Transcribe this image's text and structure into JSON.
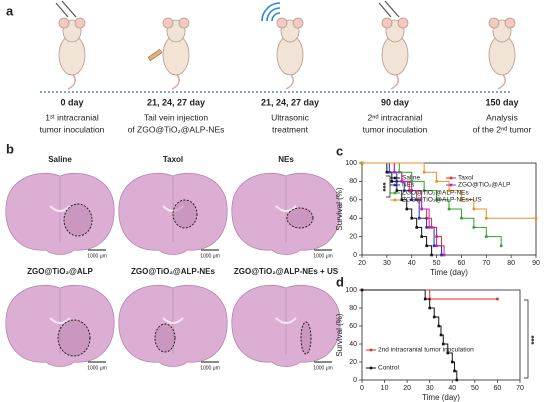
{
  "panel_labels": [
    "a",
    "b",
    "c",
    "d"
  ],
  "timeline": [
    {
      "day": "0 day",
      "line1": "1ˢᵗ intracranial",
      "line2": "tumor inoculation"
    },
    {
      "day": "21, 24, 27 day",
      "line1": "Tail vein injection",
      "line2": "of ZGO@TiO₂@ALP-NEs"
    },
    {
      "day": "21, 24, 27 day",
      "line1": "Ultrasonic",
      "line2": "treatment"
    },
    {
      "day": "90 day",
      "line1": "2ⁿᵈ intracranial",
      "line2": "tumor inoculation"
    },
    {
      "day": "150 day",
      "line1": "Analysis",
      "line2": "of the 2ⁿᵈ tumor"
    }
  ],
  "brains": [
    {
      "title": "Saline",
      "scale": "1000 μm"
    },
    {
      "title": "Taxol",
      "scale": "1000 μm"
    },
    {
      "title": "NEs",
      "scale": "1000 μm"
    },
    {
      "title": "ZGO@TiO₂@ALP",
      "scale": "1000 μm"
    },
    {
      "title": "ZGO@TiO₂@ALP-NEs",
      "scale": "1000 μm"
    },
    {
      "title": "ZGO@TiO₂@ALP-NEs + US",
      "scale": "1000 μm"
    }
  ],
  "chart_data": [
    {
      "type": "step",
      "xlabel": "Time (day)",
      "ylabel": "Survival (%)",
      "annotation": "***",
      "xlim": [
        20,
        90
      ],
      "xticks": [
        20,
        30,
        40,
        50,
        60,
        70,
        80,
        90
      ],
      "ylim": [
        0,
        100
      ],
      "yticks": [
        0,
        20,
        40,
        60,
        80,
        100
      ],
      "series": [
        {
          "name": "Saline",
          "color": "#111111",
          "x": [
            20,
            30,
            32,
            34,
            36,
            38,
            40,
            42,
            44,
            46,
            48
          ],
          "values": [
            100,
            90,
            80,
            70,
            60,
            50,
            40,
            30,
            20,
            10,
            0
          ]
        },
        {
          "name": "Taxol",
          "color": "#e03020",
          "x": [
            20,
            33,
            36,
            39,
            42,
            44,
            46,
            48,
            50,
            52
          ],
          "values": [
            100,
            90,
            80,
            70,
            60,
            50,
            40,
            30,
            20,
            0
          ]
        },
        {
          "name": "NEs",
          "color": "#2030c0",
          "x": [
            20,
            31,
            34,
            37,
            40,
            43,
            46,
            49,
            52
          ],
          "values": [
            100,
            90,
            80,
            70,
            60,
            40,
            30,
            10,
            0
          ]
        },
        {
          "name": "ZGO@TiO₂@ALP",
          "color": "#c020c0",
          "x": [
            20,
            33,
            36,
            40,
            44,
            47,
            50,
            53
          ],
          "values": [
            100,
            90,
            80,
            70,
            50,
            30,
            10,
            0
          ]
        },
        {
          "name": "ZGO@TiO₂@ALP-NEs",
          "color": "#30a030",
          "x": [
            20,
            35,
            40,
            45,
            50,
            55,
            60,
            65,
            70,
            76
          ],
          "values": [
            100,
            90,
            80,
            70,
            60,
            50,
            40,
            30,
            20,
            10
          ]
        },
        {
          "name": "ZGO@TiO₂@ALP-NEs+US",
          "color": "#e89020",
          "x": [
            20,
            45,
            50,
            55,
            60,
            65,
            70,
            90
          ],
          "values": [
            100,
            90,
            80,
            70,
            60,
            50,
            40,
            40
          ]
        }
      ]
    },
    {
      "type": "step",
      "xlabel": "Time (day)",
      "ylabel": "Survival (%)",
      "annotation": "***",
      "xlim": [
        0,
        70
      ],
      "xticks": [
        0,
        10,
        20,
        30,
        40,
        50,
        60,
        70
      ],
      "ylim": [
        0,
        100
      ],
      "yticks": [
        0,
        20,
        40,
        60,
        80,
        100
      ],
      "series": [
        {
          "name": "2nd intracranial tumor inoculation",
          "color": "#e03020",
          "x": [
            0,
            30,
            60
          ],
          "values": [
            100,
            90,
            90
          ]
        },
        {
          "name": "Control",
          "color": "#111111",
          "x": [
            0,
            28,
            30,
            32,
            34,
            35,
            36,
            38,
            40,
            41,
            42
          ],
          "values": [
            100,
            90,
            80,
            70,
            60,
            50,
            40,
            30,
            20,
            10,
            0
          ]
        }
      ]
    }
  ]
}
